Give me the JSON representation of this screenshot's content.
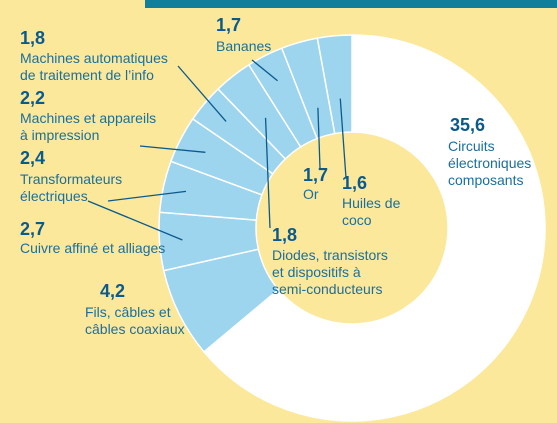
{
  "chart_data": {
    "type": "donut",
    "categories": [
      "Circuits\nélectroniques\ncomposants",
      "Fils, câbles et\ncâbles coaxiaux",
      "Cuivre affiné et alliages",
      "Transformateurs\nélectriques",
      "Machines et appareils\nà impression",
      "Machines automatiques\nde traitement de l’info",
      "Diodes, transistors\net dispositifs à\nsemi-conducteurs",
      "Bananes",
      "Or",
      "Huiles de\ncoco"
    ],
    "values": [
      35.6,
      4.2,
      2.7,
      2.4,
      2.2,
      1.8,
      1.8,
      1.7,
      1.7,
      1.6
    ],
    "value_labels": [
      "35,6",
      "4,2",
      "2,7",
      "2,4",
      "2,2",
      "1,8",
      "1,8",
      "1,7",
      "1,7",
      "1,6"
    ],
    "colors": [
      "#ffffff",
      "#9dd4ee",
      "#9dd4ee",
      "#9dd4ee",
      "#9dd4ee",
      "#9dd4ee",
      "#9dd4ee",
      "#9dd4ee",
      "#9dd4ee",
      "#9dd4ee"
    ]
  }
}
